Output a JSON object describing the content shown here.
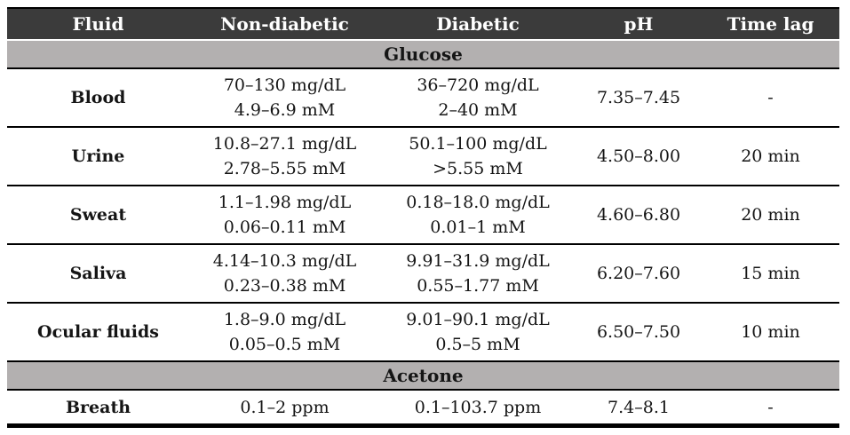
{
  "colors": {
    "header_bg": "#3b3b3b",
    "header_text": "#ffffff",
    "section_bg": "#b3b0b0",
    "border": "#000000",
    "text": "#151515"
  },
  "table": {
    "columns": [
      "Fluid",
      "Non-diabetic",
      "Diabetic",
      "pH",
      "Time lag"
    ],
    "sections": [
      {
        "title": "Glucose",
        "rows": [
          {
            "fluid": "Blood",
            "non_diabetic": [
              "70–130 mg/dL",
              "4.9–6.9 mM"
            ],
            "diabetic": [
              "36–720 mg/dL",
              "2–40 mM"
            ],
            "ph": "7.35–7.45",
            "time_lag": "-"
          },
          {
            "fluid": "Urine",
            "non_diabetic": [
              "10.8–27.1 mg/dL",
              "2.78–5.55 mM"
            ],
            "diabetic": [
              "50.1–100 mg/dL",
              ">5.55 mM"
            ],
            "ph": "4.50–8.00",
            "time_lag": "20 min"
          },
          {
            "fluid": "Sweat",
            "non_diabetic": [
              "1.1–1.98 mg/dL",
              "0.06–0.11 mM"
            ],
            "diabetic": [
              "0.18–18.0 mg/dL",
              "0.01–1 mM"
            ],
            "ph": "4.60–6.80",
            "time_lag": "20 min"
          },
          {
            "fluid": "Saliva",
            "non_diabetic": [
              "4.14–10.3 mg/dL",
              "0.23–0.38 mM"
            ],
            "diabetic": [
              "9.91–31.9 mg/dL",
              "0.55–1.77 mM"
            ],
            "ph": "6.20–7.60",
            "time_lag": "15 min"
          },
          {
            "fluid": "Ocular fluids",
            "non_diabetic": [
              "1.8–9.0 mg/dL",
              "0.05–0.5 mM"
            ],
            "diabetic": [
              "9.01–90.1 mg/dL",
              "0.5–5 mM"
            ],
            "ph": "6.50–7.50",
            "time_lag": "10 min"
          }
        ]
      },
      {
        "title": "Acetone",
        "rows": [
          {
            "fluid": "Breath",
            "non_diabetic": [
              "0.1–2 ppm"
            ],
            "diabetic": [
              "0.1–103.7 ppm"
            ],
            "ph": "7.4–8.1",
            "time_lag": "-"
          }
        ]
      }
    ]
  }
}
